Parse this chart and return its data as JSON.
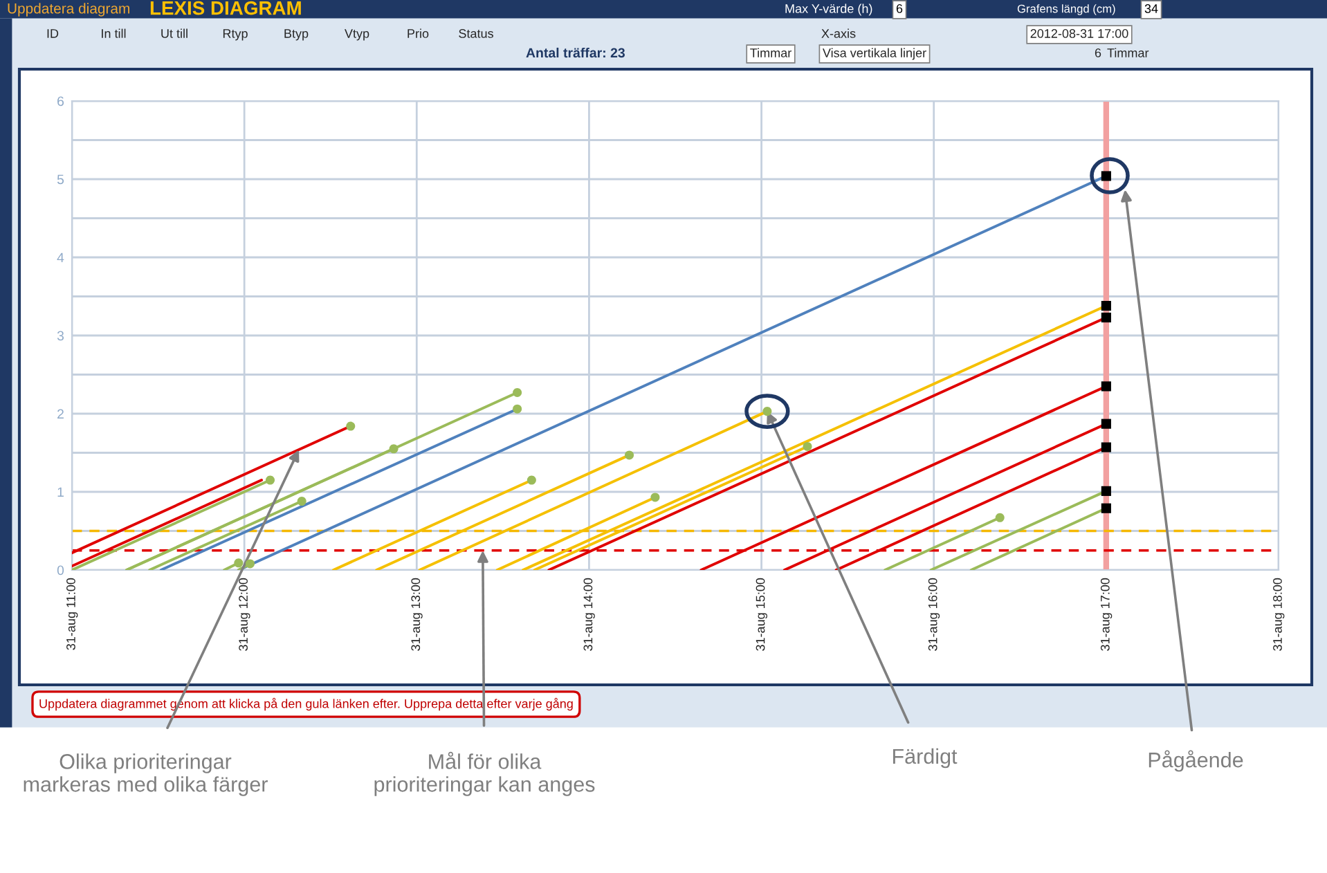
{
  "chart_data": {
    "type": "line",
    "title": "LEXIS DIAGRAM",
    "xlim": [
      "2012-08-31T11:00",
      "2012-08-31T18:00"
    ],
    "xticks": [
      {
        "value": "2012-08-31T11:00",
        "label": "31-aug 11:00"
      },
      {
        "value": "2012-08-31T12:00",
        "label": "31-aug 12:00"
      },
      {
        "value": "2012-08-31T13:00",
        "label": "31-aug 13:00"
      },
      {
        "value": "2012-08-31T14:00",
        "label": "31-aug 14:00"
      },
      {
        "value": "2012-08-31T15:00",
        "label": "31-aug 15:00"
      },
      {
        "value": "2012-08-31T16:00",
        "label": "31-aug 16:00"
      },
      {
        "value": "2012-08-31T17:00",
        "label": "31-aug 17:00"
      },
      {
        "value": "2012-08-31T18:00",
        "label": "31-aug 18:00"
      }
    ],
    "ylim": [
      0,
      6
    ],
    "yticks": [
      0,
      {
        "value": 0.5,
        "label": null
      },
      1,
      {
        "value": 1.5,
        "label": null
      },
      2,
      {
        "value": 2.5,
        "label": null
      },
      3,
      {
        "value": 3.5,
        "label": null
      },
      4,
      {
        "value": 4.5,
        "label": null
      },
      5,
      {
        "value": 5.5,
        "label": null
      },
      6
    ],
    "grid": true,
    "legend": false,
    "series": [
      {
        "color": "#e00000",
        "x": [
          "2012-08-31T11:00",
          "2012-08-31T12:37"
        ],
        "values": [
          0.22,
          1.84
        ]
      },
      {
        "color": "#e00000",
        "x": [
          "2012-08-31T11:00",
          "2012-08-31T12:06"
        ],
        "values": [
          0.05,
          1.15
        ]
      },
      {
        "color": "#9bbb59",
        "x": [
          "2012-08-31T11:00",
          "2012-08-31T12:09"
        ],
        "values": [
          0,
          1.15
        ]
      },
      {
        "color": "#9bbb59",
        "x": [
          "2012-08-31T11:19",
          "2012-08-31T12:52"
        ],
        "values": [
          0,
          1.55
        ]
      },
      {
        "color": "#9bbb59",
        "x": [
          "2012-08-31T11:19",
          "2012-08-31T13:35"
        ],
        "values": [
          0,
          2.27
        ]
      },
      {
        "color": "#9bbb59",
        "x": [
          "2012-08-31T11:27",
          "2012-08-31T12:20"
        ],
        "values": [
          0,
          0.88
        ]
      },
      {
        "color": "#4f81bd",
        "x": [
          "2012-08-31T11:31",
          "2012-08-31T13:35"
        ],
        "values": [
          0,
          2.06
        ]
      },
      {
        "color": "#4f81bd",
        "x": [
          "2012-08-31T11:58",
          "2012-08-31T17:00"
        ],
        "values": [
          0,
          5.04
        ]
      },
      {
        "color": "#9bbb59",
        "x": [
          "2012-08-31T11:53",
          "2012-08-31T11:58"
        ],
        "values": [
          0,
          0.09
        ]
      },
      {
        "color": "#9bbb59",
        "x": [
          "2012-08-31T11:58",
          "2012-08-31T12:02"
        ],
        "values": [
          0,
          0.08
        ]
      },
      {
        "color": "#f5c000",
        "x": [
          "2012-08-31T12:31",
          "2012-08-31T13:40"
        ],
        "values": [
          0,
          1.15
        ]
      },
      {
        "color": "#f5c000",
        "x": [
          "2012-08-31T12:46",
          "2012-08-31T14:14"
        ],
        "values": [
          0,
          1.47
        ]
      },
      {
        "color": "#f5c000",
        "x": [
          "2012-08-31T13:01",
          "2012-08-31T15:02"
        ],
        "values": [
          0,
          2.03
        ]
      },
      {
        "color": "#f5c000",
        "x": [
          "2012-08-31T13:28",
          "2012-08-31T14:23"
        ],
        "values": [
          0,
          0.93
        ]
      },
      {
        "color": "#f5c000",
        "x": [
          "2012-08-31T13:37",
          "2012-08-31T17:00"
        ],
        "values": [
          0,
          3.38
        ]
      },
      {
        "color": "#f5c000",
        "x": [
          "2012-08-31T13:41",
          "2012-08-31T15:16"
        ],
        "values": [
          0,
          1.58
        ]
      },
      {
        "color": "#e00000",
        "x": [
          "2012-08-31T13:46",
          "2012-08-31T17:00"
        ],
        "values": [
          0,
          3.23
        ]
      },
      {
        "color": "#e00000",
        "x": [
          "2012-08-31T14:39",
          "2012-08-31T17:00"
        ],
        "values": [
          0,
          2.35
        ]
      },
      {
        "color": "#e00000",
        "x": [
          "2012-08-31T15:08",
          "2012-08-31T17:00"
        ],
        "values": [
          0,
          1.87
        ]
      },
      {
        "color": "#e00000",
        "x": [
          "2012-08-31T15:26",
          "2012-08-31T17:00"
        ],
        "values": [
          0,
          1.57
        ]
      },
      {
        "color": "#9bbb59",
        "x": [
          "2012-08-31T15:43",
          "2012-08-31T16:23"
        ],
        "values": [
          0,
          0.67
        ]
      },
      {
        "color": "#9bbb59",
        "x": [
          "2012-08-31T15:59",
          "2012-08-31T17:00"
        ],
        "values": [
          0,
          1.01
        ]
      },
      {
        "color": "#9bbb59",
        "x": [
          "2012-08-31T16:13",
          "2012-08-31T17:00"
        ],
        "values": [
          0,
          0.79
        ]
      },
      {
        "type": "scatter",
        "marker": "circle",
        "color": "#9bbb59",
        "x": [
          "2012-08-31T12:37",
          "2012-08-31T12:09",
          "2012-08-31T12:52",
          "2012-08-31T13:35",
          "2012-08-31T12:20",
          "2012-08-31T13:35",
          "2012-08-31T11:58",
          "2012-08-31T12:02",
          "2012-08-31T13:40",
          "2012-08-31T14:14",
          "2012-08-31T15:02",
          "2012-08-31T14:23",
          "2012-08-31T15:16",
          "2012-08-31T16:23"
        ],
        "values": [
          1.84,
          1.15,
          1.55,
          2.27,
          0.88,
          2.06,
          0.09,
          0.08,
          1.15,
          1.47,
          2.03,
          0.93,
          1.58,
          0.67
        ]
      },
      {
        "type": "scatter",
        "marker": "square",
        "color": "#000000",
        "x": [
          "2012-08-31T17:00",
          "2012-08-31T17:00",
          "2012-08-31T17:00",
          "2012-08-31T17:00",
          "2012-08-31T17:00",
          "2012-08-31T17:00",
          "2012-08-31T17:00",
          "2012-08-31T17:00"
        ],
        "values": [
          5.04,
          3.38,
          3.23,
          2.35,
          1.87,
          1.57,
          1.01,
          0.79
        ]
      }
    ],
    "ref_lines": [
      {
        "axis": "y",
        "value": 0.5,
        "color": "#f5b800",
        "line_style": "dashed"
      },
      {
        "axis": "y",
        "value": 0.25,
        "color": "#e00000",
        "line_style": "dashed"
      },
      {
        "axis": "x",
        "value": "2012-08-31T17:00",
        "color": "#f2a0a0",
        "line_style": "solid"
      }
    ],
    "annotations": [
      "Uppdatera diagram",
      "Max Y-värde (h)",
      "6",
      "Grafens längd (cm)",
      "34",
      "ID",
      "In till",
      "Ut till",
      "Rtyp",
      "Btyp",
      "Vtyp",
      "Prio",
      "Status",
      "Antal träffar: 23",
      "X-axis",
      "2012-08-31 17:00",
      "Timmar",
      "Visa vertikala linjer",
      "6",
      "Timmar",
      "Uppdatera diagrammet genom att klicka på den gula länken efter. Upprepa detta efter varje gång",
      {
        "text": "Olika prioriteringar\nmarkeras med olika färger",
        "x": "2012-08-31T12:19",
        "y": 1.54
      },
      {
        "text": "Mål för olika\nprioriteringar kan anges",
        "x": "2012-08-31T13:23",
        "y": 0.25
      },
      {
        "text": "Färdigt",
        "x": "2012-08-31T15:02",
        "y": 2.03
      },
      "Pågående"
    ]
  }
}
